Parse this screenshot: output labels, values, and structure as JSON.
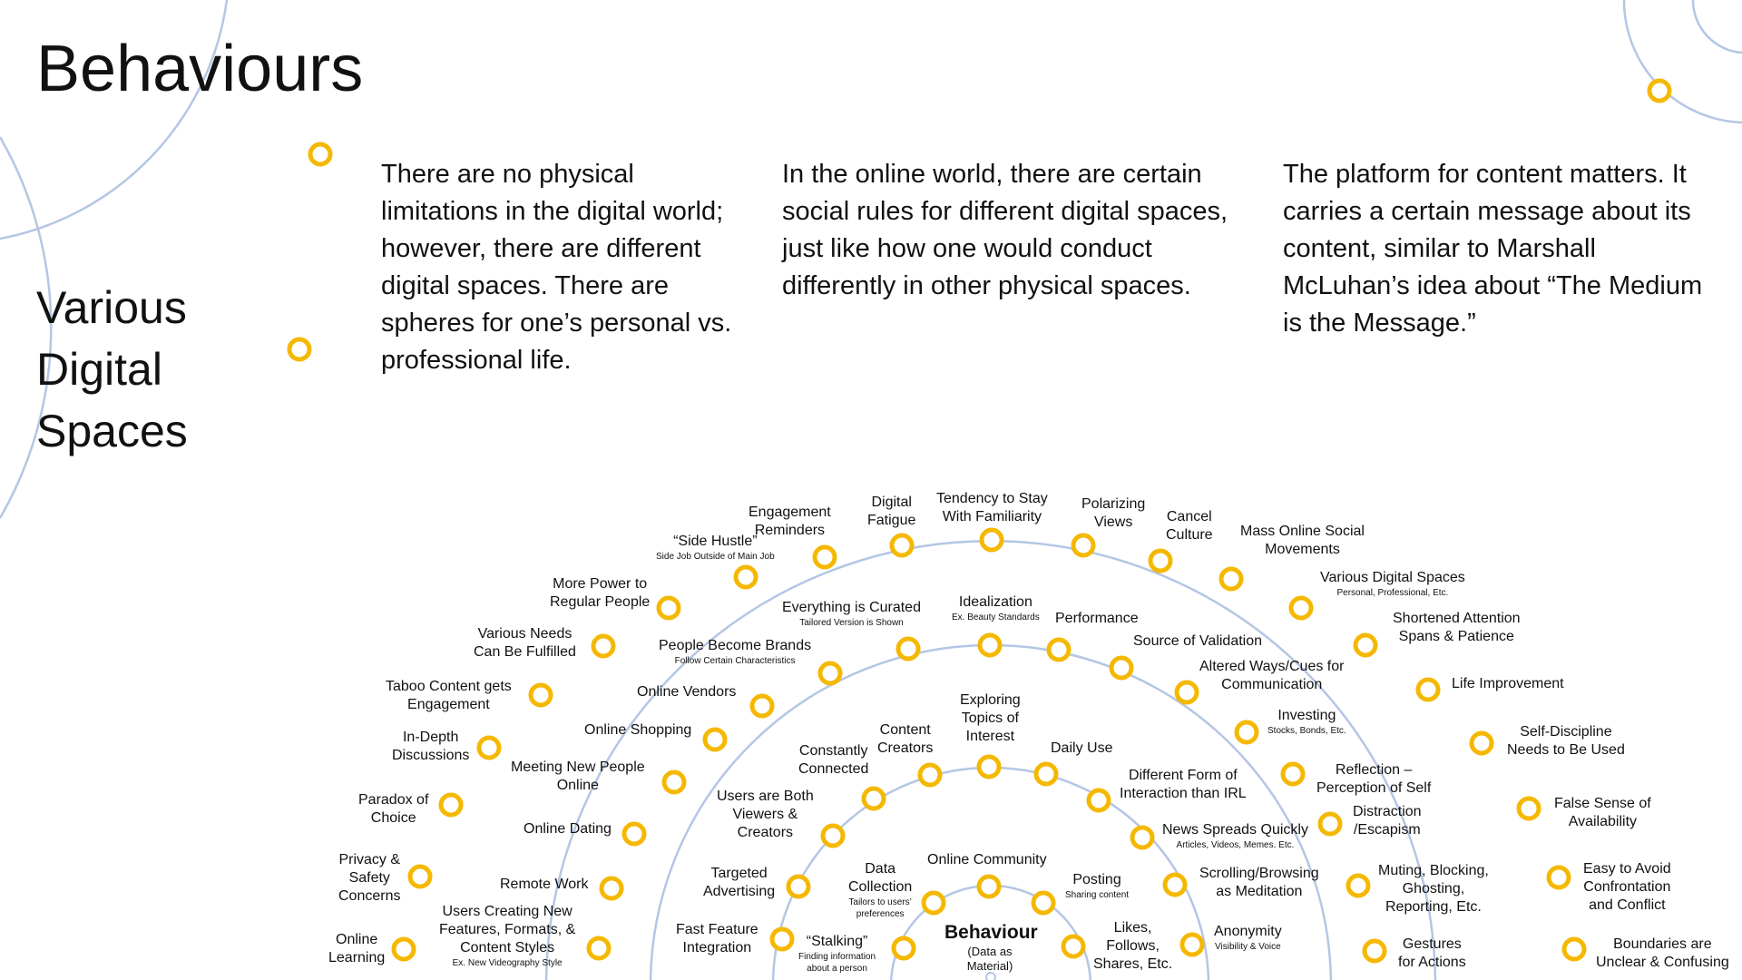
{
  "page": {
    "title": "Behaviours",
    "subtitle": "Various Digital Spaces"
  },
  "colors": {
    "ring": "#b4c6e4",
    "node": "#f5b800",
    "text": "#111111"
  },
  "paragraphs": [
    "There are no physical limitations in the digital world; however, there are different digital spaces. There are spheres for one’s personal vs. professional life.",
    "In the online world, there are certain social rules for different digital spaces, just like how one would conduct differently in other physical spaces.",
    "The platform for content matters. It carries a certain message about its content, similar to Marshall McLuhan’s idea about “The Medium is the Message.”"
  ],
  "diagram": {
    "center": {
      "title": "Behaviour",
      "subtitle": "(Data as Material)"
    },
    "rings": [
      {
        "nodes": [
          {
            "text": "Online Community",
            "sub": ""
          },
          {
            "text": "Posting",
            "sub": "Sharing content"
          },
          {
            "text": "Likes,\nFollows,\nShares, Etc.",
            "sub": ""
          },
          {
            "text": "Data\nCollection",
            "sub": "Tailors to users’\npreferences"
          },
          {
            "text": "“Stalking”",
            "sub": "Finding information\nabout a person"
          }
        ]
      },
      {
        "nodes": [
          {
            "text": "Exploring\nTopics of\nInterest",
            "sub": ""
          },
          {
            "text": "Daily Use",
            "sub": ""
          },
          {
            "text": "Different Form of\nInteraction than IRL",
            "sub": ""
          },
          {
            "text": "News Spreads Quickly",
            "sub": "Articles, Videos, Memes. Etc."
          },
          {
            "text": "Scrolling/Browsing\nas Meditation",
            "sub": ""
          },
          {
            "text": "Anonymity",
            "sub": "Visibility & Voice"
          },
          {
            "text": "Content\nCreators",
            "sub": ""
          },
          {
            "text": "Constantly\nConnected",
            "sub": ""
          },
          {
            "text": "Users are Both\nViewers &\nCreators",
            "sub": ""
          },
          {
            "text": "Targeted\nAdvertising",
            "sub": ""
          },
          {
            "text": "Fast Feature\nIntegration",
            "sub": ""
          }
        ]
      },
      {
        "nodes": [
          {
            "text": "Idealization",
            "sub": "Ex. Beauty Standards"
          },
          {
            "text": "Performance",
            "sub": ""
          },
          {
            "text": "Source of Validation",
            "sub": ""
          },
          {
            "text": "Altered Ways/Cues for\nCommunication",
            "sub": ""
          },
          {
            "text": "Investing",
            "sub": "Stocks, Bonds, Etc."
          },
          {
            "text": "Reflection –\nPerception of Self",
            "sub": ""
          },
          {
            "text": "Distraction\n/Escapism",
            "sub": ""
          },
          {
            "text": "Muting, Blocking,\nGhosting,\nReporting, Etc.",
            "sub": ""
          },
          {
            "text": "Gestures\nfor Actions",
            "sub": ""
          },
          {
            "text": "Everything is Curated",
            "sub": "Tailored Version is Shown"
          },
          {
            "text": "People Become Brands",
            "sub": "Follow Certain Characteristics"
          },
          {
            "text": "Online Vendors",
            "sub": ""
          },
          {
            "text": "Online Shopping",
            "sub": ""
          },
          {
            "text": "Meeting New People\nOnline",
            "sub": ""
          },
          {
            "text": "Online Dating",
            "sub": ""
          },
          {
            "text": "Remote Work",
            "sub": ""
          },
          {
            "text": "Users Creating New\nFeatures, Formats, &\nContent Styles",
            "sub": "Ex. New Videography Style"
          }
        ]
      },
      {
        "nodes": [
          {
            "text": "Tendency to Stay\nWith Familiarity",
            "sub": ""
          },
          {
            "text": "Polarizing\nViews",
            "sub": ""
          },
          {
            "text": "Cancel\nCulture",
            "sub": ""
          },
          {
            "text": "Mass Online Social\nMovements",
            "sub": ""
          },
          {
            "text": "Various Digital Spaces",
            "sub": "Personal, Professional, Etc."
          },
          {
            "text": "Shortened Attention\nSpans & Patience",
            "sub": ""
          },
          {
            "text": "Life Improvement",
            "sub": ""
          },
          {
            "text": "Self-Discipline\nNeeds to Be Used",
            "sub": ""
          },
          {
            "text": "False Sense of\nAvailability",
            "sub": ""
          },
          {
            "text": "Easy to Avoid\nConfrontation\nand Conflict",
            "sub": ""
          },
          {
            "text": "Boundaries are\nUnclear & Confusing",
            "sub": ""
          },
          {
            "text": "Digital\nFatigue",
            "sub": ""
          },
          {
            "text": "Engagement\nReminders",
            "sub": ""
          },
          {
            "text": "“Side Hustle”",
            "sub": "Side Job Outside of Main Job"
          },
          {
            "text": "More Power to\nRegular People",
            "sub": ""
          },
          {
            "text": "Various Needs\nCan Be Fulfilled",
            "sub": ""
          },
          {
            "text": "Taboo Content gets\nEngagement",
            "sub": ""
          },
          {
            "text": "In-Depth\nDiscussions",
            "sub": ""
          },
          {
            "text": "Paradox of\nChoice",
            "sub": ""
          },
          {
            "text": "Privacy &\nSafety\nConcerns",
            "sub": ""
          },
          {
            "text": "Online\nLearning",
            "sub": ""
          }
        ]
      }
    ]
  }
}
